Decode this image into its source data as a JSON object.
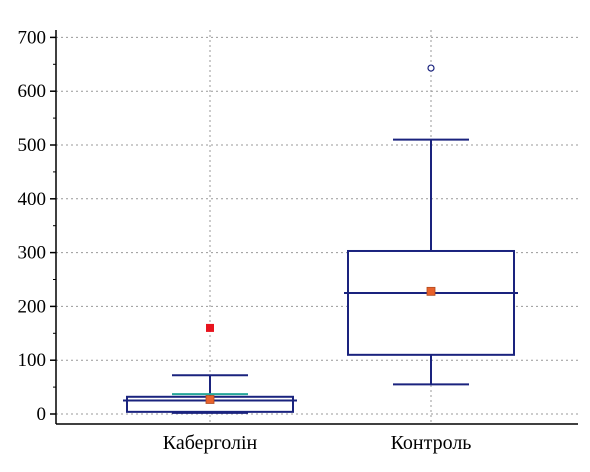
{
  "chart_data": {
    "type": "box",
    "categories": [
      "Каберголін",
      "Контроль"
    ],
    "boxes": [
      {
        "category": "Каберголін",
        "whisker_low": 2,
        "q1": 4,
        "median": 25,
        "q3": 32,
        "whisker_high": 72,
        "mean": 27,
        "ci_low": 36,
        "ci_high": 38,
        "outliers": [],
        "far_outliers": [
          160
        ]
      },
      {
        "category": "Контроль",
        "whisker_low": 55,
        "q1": 110,
        "median": 225,
        "q3": 303,
        "whisker_high": 510,
        "mean": 228,
        "outliers": [
          643
        ],
        "far_outliers": []
      }
    ],
    "yticks": [
      0,
      100,
      200,
      300,
      400,
      500,
      600,
      700
    ],
    "ylim": [
      -20,
      710
    ],
    "grid": true,
    "colors": {
      "box": "#1a237e",
      "mean": "#e8622c",
      "far_outlier": "#e8141e",
      "outlier": "#1a237e",
      "ci": "#26a69a",
      "grid": "#999999"
    }
  }
}
